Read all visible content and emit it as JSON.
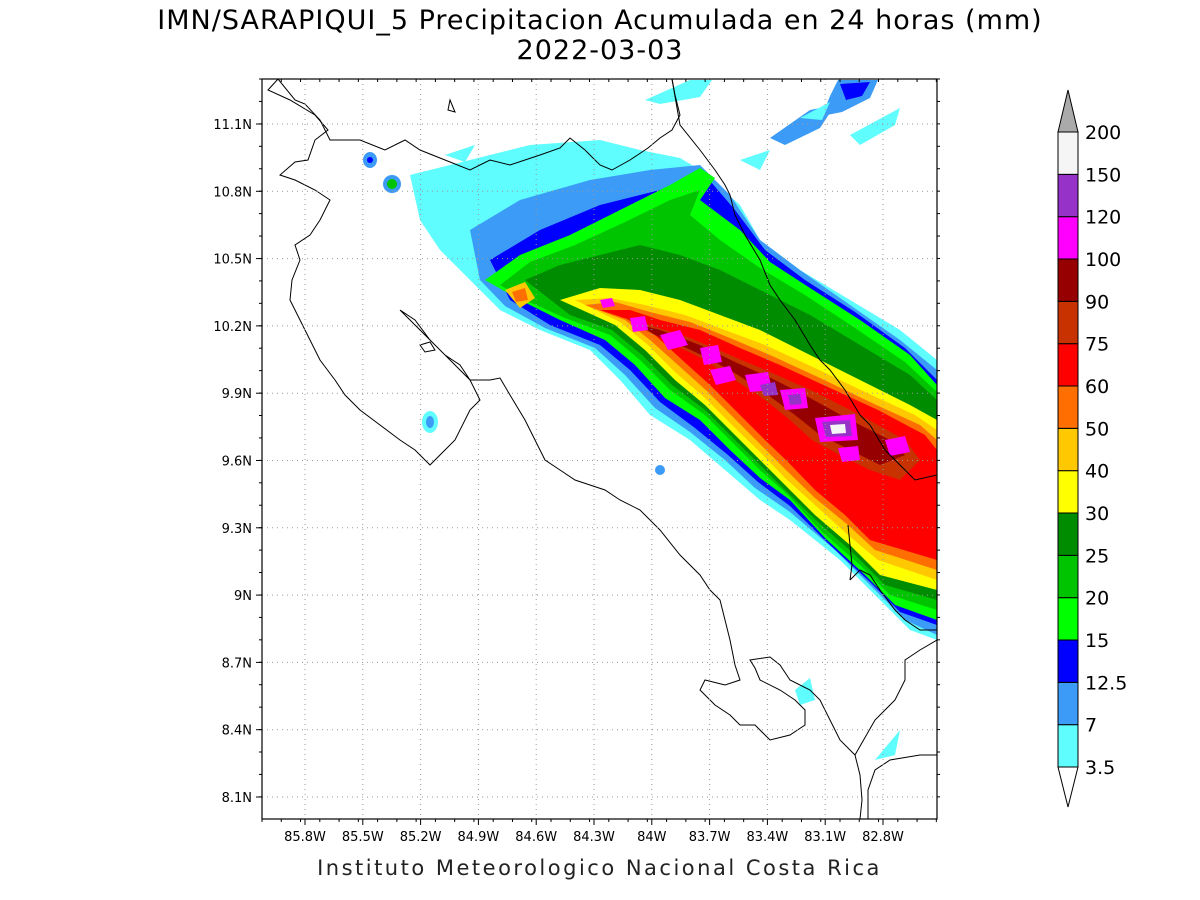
{
  "title": "IMN/SARAPIQUI_5 Precipitacion Acumulada en 24 horas (mm)",
  "date": "2022-03-03",
  "footer": "Instituto Meteorologico Nacional Costa Rica",
  "map": {
    "lat_labels": [
      "11.1N",
      "10.8N",
      "10.5N",
      "10.2N",
      "9.9N",
      "9.6N",
      "9.3N",
      "9N",
      "8.7N",
      "8.4N",
      "8.1N"
    ],
    "lon_labels": [
      "85.8W",
      "85.5W",
      "85.2W",
      "84.9W",
      "84.6W",
      "84.3W",
      "84W",
      "83.7W",
      "83.4W",
      "83.1W",
      "82.8W"
    ],
    "grid": "dotted"
  },
  "colorbar": {
    "labels": [
      "3.5",
      "7",
      "12.5",
      "15",
      "20",
      "25",
      "30",
      "40",
      "50",
      "60",
      "75",
      "90",
      "100",
      "120",
      "150",
      "200"
    ],
    "colors": [
      "#5ffdfd",
      "#3b9bf6",
      "#0000ff",
      "#00ff00",
      "#00c400",
      "#008c00",
      "#ffff00",
      "#ffc800",
      "#ff6e00",
      "#ff0000",
      "#c83200",
      "#960000",
      "#ff00ff",
      "#9632c8",
      "#f5f5f5",
      "#aaaaaa"
    ]
  }
}
